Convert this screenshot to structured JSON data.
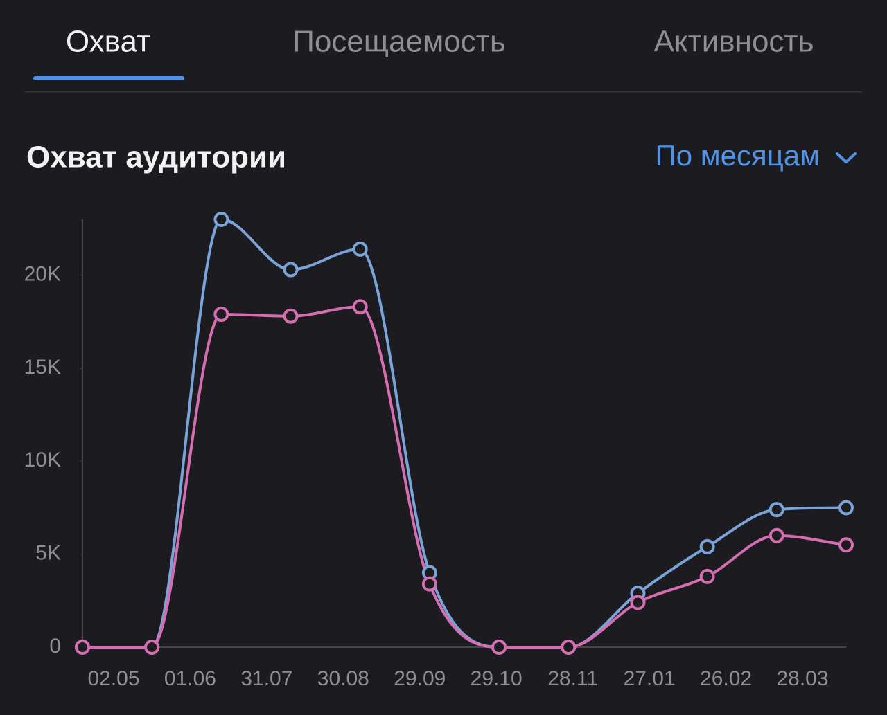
{
  "tabs": [
    "Охват",
    "Посещаемость",
    "Активность"
  ],
  "section_title": "Охват аудитории",
  "period_selector": "По месяцам",
  "chart_data": {
    "type": "line",
    "x_labels": [
      "02.05",
      "01.06",
      "31.07",
      "30.08",
      "29.09",
      "29.10",
      "28.11",
      "27.01",
      "26.02",
      "28.03"
    ],
    "series": [
      {
        "color": "#7aa3d8",
        "values": [
          0,
          0,
          23000,
          20300,
          21400,
          4000,
          0,
          0,
          2900,
          5400,
          7400,
          7500
        ]
      },
      {
        "color": "#d46eb0",
        "values": [
          0,
          0,
          17900,
          17800,
          18300,
          3400,
          0,
          0,
          2400,
          3800,
          6000,
          5500
        ]
      }
    ],
    "ylim": [
      0,
      23000
    ],
    "yticks": [
      0,
      {
        "value": 5000,
        "label": "5K"
      },
      {
        "value": 10000,
        "label": "10K"
      },
      {
        "value": 15000,
        "label": "15K"
      },
      {
        "value": 20000,
        "label": "20K"
      }
    ],
    "grid": false
  }
}
